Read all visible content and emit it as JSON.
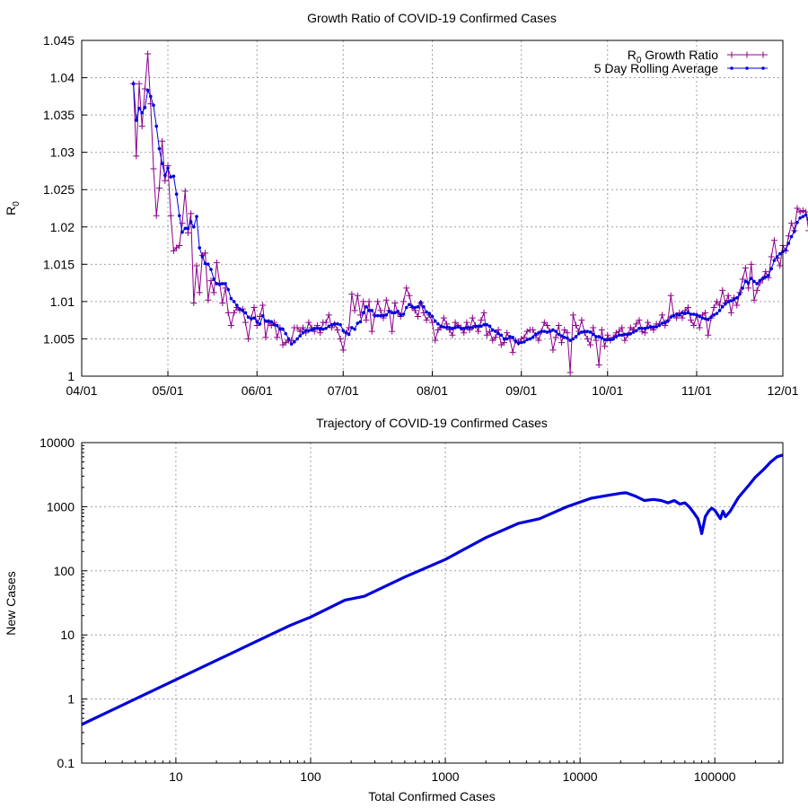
{
  "chart_data": [
    {
      "type": "line",
      "title": "Growth Ratio of COVID-19 Confirmed Cases",
      "ylabel": {
        "base": "R",
        "sub": "0"
      },
      "xlabel": "",
      "x_axis": {
        "type": "date",
        "year": 2020,
        "range": [
          "2020-04-01",
          "2020-12-01"
        ],
        "ticks": [
          "2020-04-01",
          "2020-05-01",
          "2020-06-01",
          "2020-07-01",
          "2020-08-01",
          "2020-09-01",
          "2020-10-01",
          "2020-11-01",
          "2020-12-01"
        ],
        "tick_labels": [
          "04/01",
          "05/01",
          "06/01",
          "07/01",
          "08/01",
          "09/01",
          "10/01",
          "11/01",
          "12/01"
        ]
      },
      "y_axis": {
        "range": [
          1,
          1.045
        ],
        "ticks": [
          1,
          1.005,
          1.01,
          1.015,
          1.02,
          1.025,
          1.03,
          1.035,
          1.04,
          1.045
        ],
        "tick_labels": [
          "1",
          "1.005",
          "1.01",
          "1.015",
          "1.02",
          "1.025",
          "1.03",
          "1.035",
          "1.04",
          "1.045"
        ]
      },
      "grid": true,
      "legend_position": "top-right",
      "legend": [
        {
          "base": "R",
          "sub": "0",
          "rest": " Growth Ratio",
          "color": "#8b008b",
          "marker": "plus"
        },
        {
          "text": "5 Day Rolling Average",
          "color": "#0000dd",
          "marker": "dot"
        }
      ],
      "series": [
        {
          "key": "daily",
          "color": "#8b008b",
          "marker": "plus",
          "x_start": "2020-04-19",
          "x_step_days": 1,
          "values": [
            1.0392,
            1.0295,
            1.0392,
            1.0335,
            1.0385,
            1.0432,
            1.0365,
            1.0278,
            1.0215,
            1.0252,
            1.0315,
            1.0262,
            1.0282,
            1.0215,
            1.0168,
            1.0172,
            1.0175,
            1.0205,
            1.0248,
            1.0192,
            1.0218,
            1.0098,
            1.0148,
            1.0112,
            1.0162,
            1.0165,
            1.0102,
            1.0128,
            1.0112,
            1.0152,
            1.0125,
            1.0098,
            1.0118,
            1.0085,
            1.0068,
            1.0085,
            1.0092,
            1.0088,
            1.009,
            1.0072,
            1.005,
            1.0078,
            1.0092,
            1.0068,
            1.008,
            1.0095,
            1.0052,
            1.0072,
            1.0068,
            1.0072,
            1.0052,
            1.0065,
            1.0042,
            1.0045,
            1.0048,
            1.0048,
            1.0065,
            1.0065,
            1.006,
            1.0065,
            1.0058,
            1.0072,
            1.0065,
            1.006,
            1.0068,
            1.0058,
            1.0072,
            1.0072,
            1.0082,
            1.0065,
            1.007,
            1.0062,
            1.005,
            1.0035,
            1.0058,
            1.0065,
            1.011,
            1.0088,
            1.0108,
            1.0082,
            1.01,
            1.0075,
            1.01,
            1.006,
            1.0082,
            1.01,
            1.0088,
            1.0078,
            1.0102,
            1.0088,
            1.006,
            1.0098,
            1.0085,
            1.008,
            1.01,
            1.0118,
            1.0108,
            1.0092,
            1.0088,
            1.008,
            1.0098,
            1.0085,
            1.0075,
            1.0082,
            1.0072,
            1.0048,
            1.0062,
            1.0065,
            1.0078,
            1.007,
            1.0062,
            1.0055,
            1.0072,
            1.0068,
            1.0065,
            1.0058,
            1.0072,
            1.0062,
            1.0078,
            1.0068,
            1.006,
            1.0075,
            1.0085,
            1.0055,
            1.006,
            1.0048,
            1.0052,
            1.0062,
            1.0042,
            1.0045,
            1.0058,
            1.005,
            1.0032,
            1.0048,
            1.0045,
            1.005,
            1.0052,
            1.006,
            1.0062,
            1.0062,
            1.0055,
            1.0048,
            1.006,
            1.0072,
            1.0068,
            1.006,
            1.0035,
            1.0052,
            1.0068,
            1.0045,
            1.0062,
            1.0058,
            1.0005,
            1.0082,
            1.0068,
            1.006,
            1.0075,
            1.0058,
            1.005,
            1.0042,
            1.0065,
            1.0048,
            1.0015,
            1.0062,
            1.004,
            1.0055,
            1.0048,
            1.0052,
            1.0058,
            1.006,
            1.0065,
            1.0048,
            1.0055,
            1.0065,
            1.0062,
            1.007,
            1.0075,
            1.006,
            1.0058,
            1.0072,
            1.0065,
            1.0062,
            1.007,
            1.007,
            1.0082,
            1.0068,
            1.0075,
            1.0108,
            1.0082,
            1.0078,
            1.0085,
            1.0078,
            1.0088,
            1.0092,
            1.0075,
            1.0068,
            1.0082,
            1.0065,
            1.0082,
            1.0085,
            1.0055,
            1.0078,
            1.0092,
            1.01,
            1.0095,
            1.0115,
            1.0098,
            1.0108,
            1.0085,
            1.0105,
            1.0095,
            1.0112,
            1.013,
            1.0145,
            1.0118,
            1.015,
            1.0102,
            1.0115,
            1.0125,
            1.013,
            1.014,
            1.0132,
            1.016,
            1.0182,
            1.0158,
            1.0148,
            1.0175,
            1.0168,
            1.0188,
            1.0205,
            1.0195,
            1.0225,
            1.022,
            1.0222,
            1.022,
            1.0195,
            1.0172,
            1.0215,
            1.021,
            1.0238,
            1.0252,
            1.0228,
            1.0215,
            1.0225,
            1.0235,
            1.0218,
            1.0152,
            1.0212
          ]
        },
        {
          "key": "rolling",
          "color": "#0000dd",
          "marker": "dot",
          "x_start": "2020-04-19",
          "x_step_days": 1,
          "values": [
            1.0392,
            1.0343,
            1.0359,
            1.0353,
            1.036,
            1.0383,
            1.0375,
            1.0363,
            1.0335,
            1.0305,
            1.0285,
            1.0269,
            1.0279,
            1.0267,
            1.0268,
            1.0244,
            1.0215,
            1.0193,
            1.0198,
            1.0198,
            1.0207,
            1.02,
            1.0214,
            1.0172,
            1.016,
            1.0151,
            1.015,
            1.0143,
            1.013,
            1.0124,
            1.0123,
            1.0124,
            1.0124,
            1.0116,
            1.0104,
            1.01,
            1.0095,
            1.009,
            1.0088,
            1.0085,
            1.0079,
            1.0077,
            1.0078,
            1.0073,
            1.007,
            1.0081,
            1.0074,
            1.0074,
            1.0073,
            1.0069,
            1.0068,
            1.0063,
            1.0063,
            1.0057,
            1.005,
            1.0043,
            1.0046,
            1.005,
            1.0054,
            1.0058,
            1.0061,
            1.0061,
            1.0062,
            1.0064,
            1.0064,
            1.0064,
            1.0063,
            1.0064,
            1.0067,
            1.0069,
            1.007,
            1.007,
            1.0069,
            1.0061,
            1.0058,
            1.0056,
            1.0065,
            1.0063,
            1.0071,
            1.0073,
            1.0085,
            1.0093,
            1.0088,
            1.0088,
            1.0081,
            1.0081,
            1.0081,
            1.0081,
            1.0082,
            1.0087,
            1.0085,
            1.0085,
            1.0087,
            1.0082,
            1.0083,
            1.0092,
            1.0096,
            1.0093,
            1.0092,
            1.0093,
            1.0099,
            1.0093,
            1.0086,
            1.0084,
            1.008,
            1.0074,
            1.007,
            1.0067,
            1.0066,
            1.0065,
            1.0065,
            1.0064,
            1.0065,
            1.0066,
            1.0064,
            1.0064,
            1.0065,
            1.0065,
            1.0065,
            1.0067,
            1.0067,
            1.0067,
            1.0069,
            1.0069,
            1.0067,
            1.0062,
            1.006,
            1.0057,
            1.0055,
            1.005,
            1.005,
            1.0053,
            1.0052,
            1.0047,
            1.0044,
            1.0045,
            1.0046,
            1.0049,
            1.005,
            1.0052,
            1.0056,
            1.0058,
            1.006,
            1.006,
            1.0059,
            1.006,
            1.0062,
            1.006,
            1.0056,
            1.0054,
            1.0052,
            1.0051,
            1.0048,
            1.005,
            1.0053,
            1.0057,
            1.0059,
            1.006,
            1.006,
            1.0059,
            1.0056,
            1.0053,
            1.0053,
            1.0051,
            1.0049,
            1.0049,
            1.0049,
            1.005,
            1.0053,
            1.0055,
            1.0055,
            1.0056,
            1.0056,
            1.0057,
            1.0059,
            1.0061,
            1.0064,
            1.0064,
            1.0064,
            1.0065,
            1.0066,
            1.0066,
            1.0066,
            1.0068,
            1.0071,
            1.0072,
            1.0074,
            1.0079,
            1.0081,
            1.0083,
            1.0082,
            1.0085,
            1.0084,
            1.0085,
            1.0083,
            1.0083,
            1.0082,
            1.008,
            1.0078,
            1.0077,
            1.0076,
            1.0079,
            1.0082,
            1.0084,
            1.0088,
            1.0093,
            1.0097,
            1.01,
            1.0101,
            1.0103,
            1.0105,
            1.011,
            1.0118,
            1.0127,
            1.0125,
            1.0131,
            1.0127,
            1.0124,
            1.0128,
            1.0131,
            1.0133,
            1.0135,
            1.0144,
            1.0155,
            1.016,
            1.0164,
            1.0167,
            1.0169,
            1.0178,
            1.0187,
            1.0194,
            1.0206,
            1.0212,
            1.0214,
            1.0216,
            1.021,
            1.0206,
            1.0207,
            1.0207,
            1.0212,
            1.0221,
            1.0224,
            1.023,
            1.0232,
            1.0235,
            1.0231,
            1.0214,
            1.021
          ]
        }
      ]
    },
    {
      "type": "line",
      "title": "Trajectory of COVID-19 Confirmed Cases",
      "xlabel": "Total Confirmed Cases",
      "ylabel": "New Cases",
      "x_axis": {
        "scale": "log",
        "range": [
          2,
          320000
        ],
        "ticks": [
          10,
          100,
          1000,
          10000,
          100000
        ],
        "tick_labels": [
          "10",
          "100",
          "1000",
          "10000",
          "100000"
        ]
      },
      "y_axis": {
        "scale": "log",
        "range": [
          0.1,
          10000
        ],
        "ticks": [
          0.1,
          1,
          10,
          100,
          1000,
          10000
        ],
        "tick_labels": [
          "0.1",
          "1",
          "10",
          "100",
          "1000",
          "10000"
        ]
      },
      "grid": true,
      "series": [
        {
          "color": "#0000dd",
          "x": [
            2,
            5,
            10,
            20,
            40,
            70,
            100,
            180,
            250,
            500,
            1000,
            2000,
            3500,
            5000,
            8000,
            12000,
            16000,
            20000,
            22000,
            26000,
            30000,
            35000,
            40000,
            45000,
            50000,
            55000,
            60000,
            65000,
            70000,
            75000,
            78000,
            80000,
            85000,
            90000,
            95000,
            100000,
            110000,
            115000,
            120000,
            130000,
            150000,
            180000,
            200000,
            230000,
            260000,
            290000,
            320000
          ],
          "y": [
            0.4,
            1,
            2,
            4,
            8,
            14,
            19,
            35,
            40,
            80,
            150,
            330,
            550,
            650,
            1000,
            1350,
            1500,
            1620,
            1650,
            1450,
            1250,
            1300,
            1250,
            1150,
            1250,
            1100,
            1150,
            980,
            800,
            650,
            480,
            380,
            700,
            850,
            950,
            880,
            650,
            850,
            700,
            850,
            1400,
            2200,
            2900,
            3800,
            5000,
            6000,
            6400
          ]
        }
      ]
    }
  ]
}
